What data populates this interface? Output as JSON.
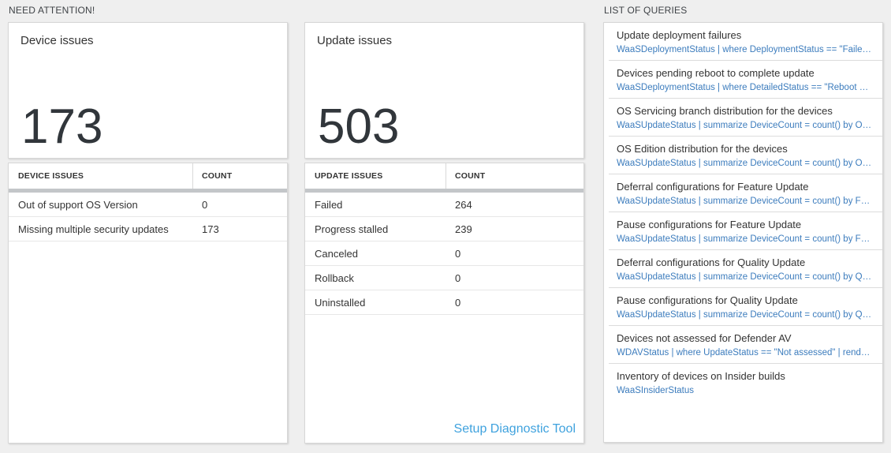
{
  "sections": {
    "need_attention": {
      "label": "NEED ATTENTION!"
    },
    "list_of_queries": {
      "label": "LIST OF QUERIES"
    }
  },
  "device_card": {
    "title": "Device issues",
    "count": "173"
  },
  "update_card": {
    "title": "Update issues",
    "count": "503"
  },
  "device_table": {
    "headers": [
      "DEVICE ISSUES",
      "COUNT"
    ],
    "rows": [
      [
        "Out of support OS Version",
        "0"
      ],
      [
        "Missing multiple security updates",
        "173"
      ]
    ]
  },
  "update_table": {
    "headers": [
      "UPDATE ISSUES",
      "COUNT"
    ],
    "rows": [
      [
        "Failed",
        "264"
      ],
      [
        "Progress stalled",
        "239"
      ],
      [
        "Canceled",
        "0"
      ],
      [
        "Rollback",
        "0"
      ],
      [
        "Uninstalled",
        "0"
      ]
    ],
    "link": "Setup Diagnostic Tool"
  },
  "queries": {
    "items": [
      {
        "title": "Update deployment failures",
        "query": "WaaSDeploymentStatus | where DeploymentStatus == \"Failed\" |..."
      },
      {
        "title": "Devices pending reboot to complete update",
        "query": "WaaSDeploymentStatus | where DetailedStatus == \"Reboot pend..."
      },
      {
        "title": "OS Servicing branch distribution for the devices",
        "query": "WaaSUpdateStatus | summarize DeviceCount = count() by OSSer..."
      },
      {
        "title": "OS Edition distribution for the devices",
        "query": "WaaSUpdateStatus | summarize DeviceCount = count() by OSEdit..."
      },
      {
        "title": "Deferral configurations for Feature Update",
        "query": "WaaSUpdateStatus | summarize DeviceCount = count() by Featur..."
      },
      {
        "title": "Pause configurations for Feature Update",
        "query": "WaaSUpdateStatus | summarize DeviceCount = count() by Featur..."
      },
      {
        "title": "Deferral configurations for Quality Update",
        "query": "WaaSUpdateStatus | summarize DeviceCount = count() by Qualit..."
      },
      {
        "title": "Pause configurations for Quality Update",
        "query": "WaaSUpdateStatus | summarize DeviceCount = count() by Qualit..."
      },
      {
        "title": "Devices not assessed for Defender AV",
        "query": "WDAVStatus | where UpdateStatus == \"Not assessed\" | render ta..."
      },
      {
        "title": "Inventory of devices on Insider builds",
        "query": "WaaSInsiderStatus"
      }
    ]
  },
  "colors": {
    "page_bg": "#efefef",
    "card_border": "#d7d7d7",
    "header_bar": "#c3c6c9",
    "query_link_blue": "#3c7cbd",
    "action_link_blue": "#3fa2de",
    "text_dark": "#333333"
  }
}
